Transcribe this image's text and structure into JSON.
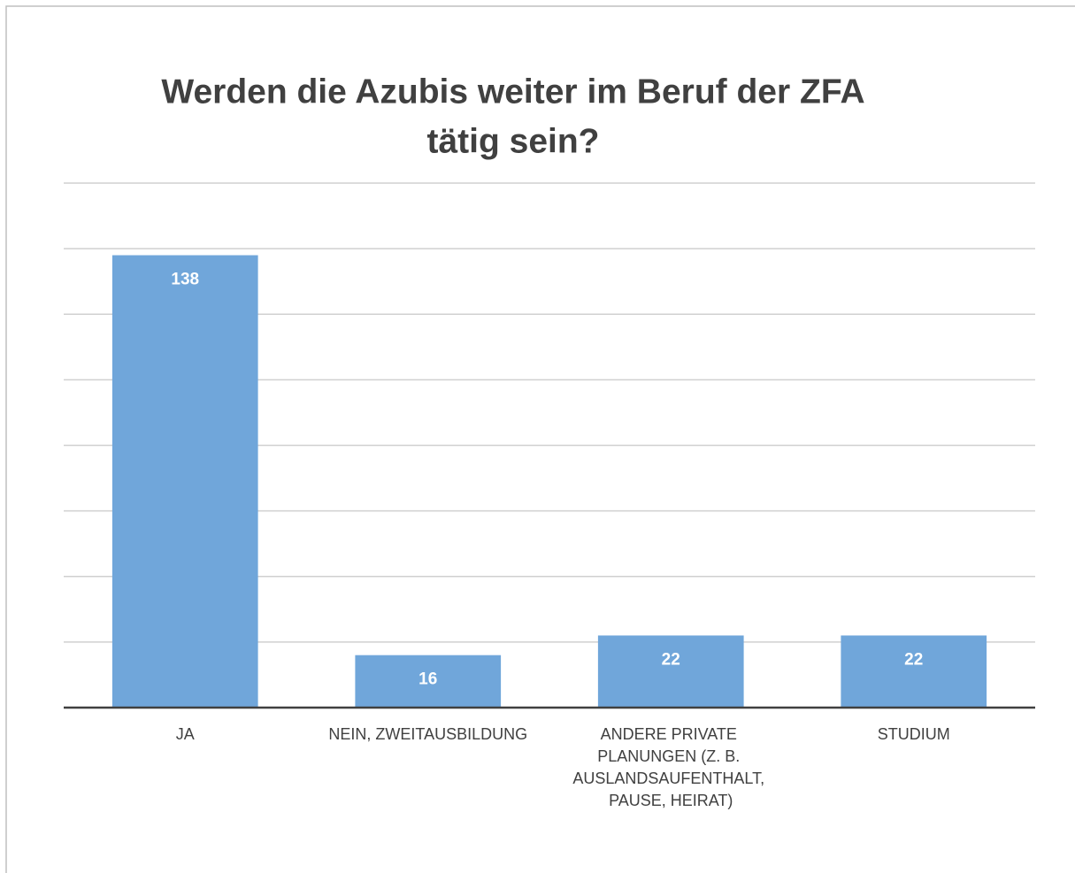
{
  "chart_data": {
    "type": "bar",
    "title": [
      "Werden die Azubis weiter im Beruf der ZFA",
      "tätig sein?"
    ],
    "categories": [
      "JA",
      "NEIN, ZWEITAUSBILDUNG",
      "ANDERE PRIVATE PLANUNGEN (Z. B. AUSLANDSAUFENTHALT, PAUSE, HEIRAT)",
      "STUDIUM"
    ],
    "values": [
      138,
      16,
      22,
      22
    ],
    "color": "#70a6da",
    "ylim": [
      0,
      160
    ],
    "yticks": [
      0,
      20,
      40,
      60,
      80,
      100,
      120,
      140,
      160
    ],
    "grid": true
  }
}
